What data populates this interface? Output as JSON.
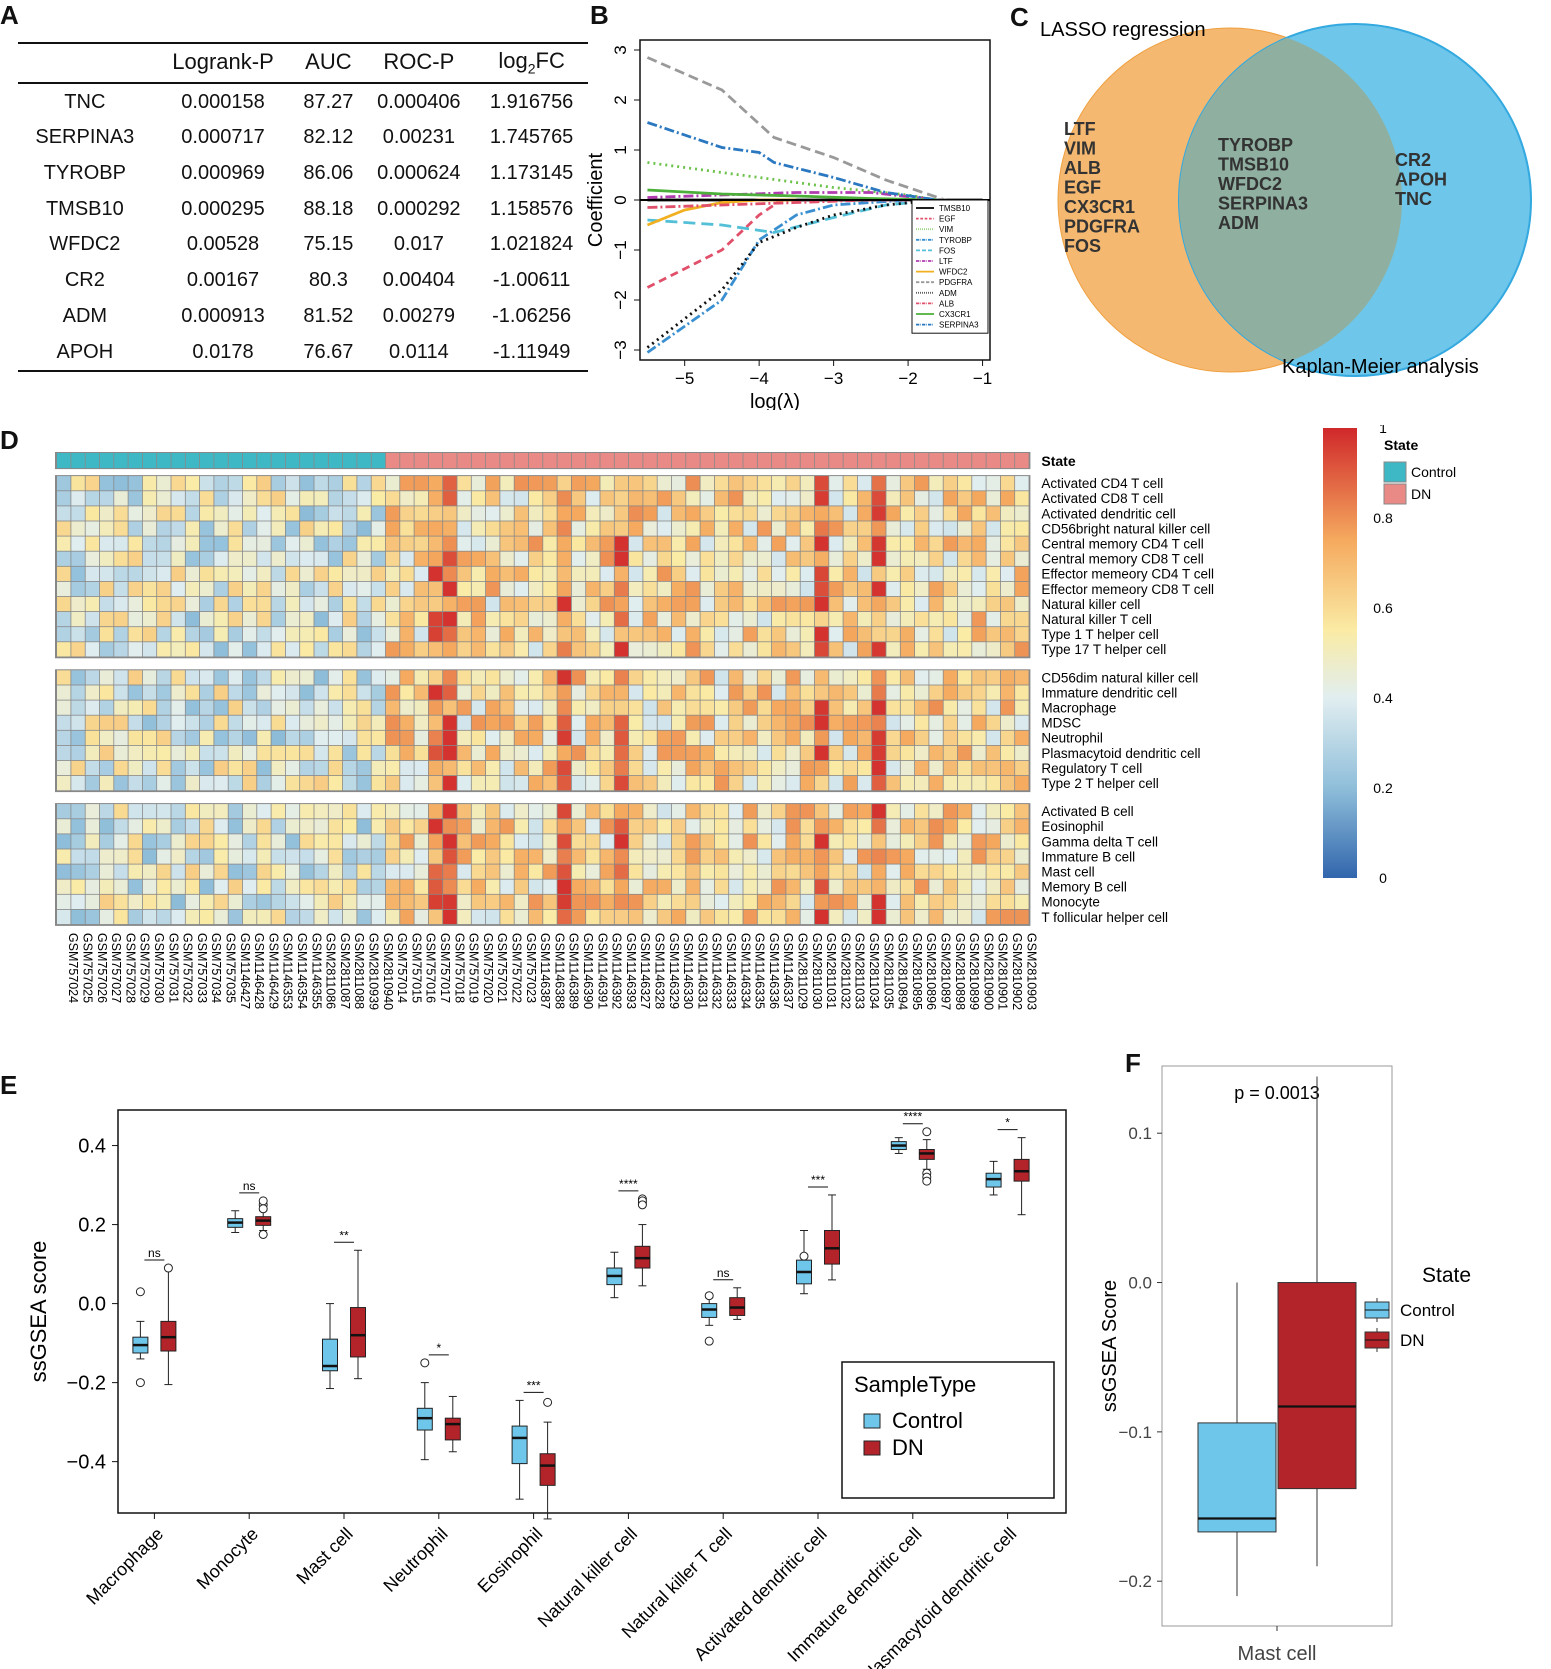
{
  "panels": {
    "a": "A",
    "b": "B",
    "c": "C",
    "d": "D",
    "e": "E",
    "f": "F"
  },
  "table": {
    "headers": [
      "",
      "Logrank-P",
      "AUC",
      "ROC-P",
      "log2FC"
    ],
    "rows": [
      [
        "TNC",
        "0.000158",
        "87.27",
        "0.000406",
        "1.916756"
      ],
      [
        "SERPINA3",
        "0.000717",
        "82.12",
        "0.00231",
        "1.745765"
      ],
      [
        "TYROBP",
        "0.000969",
        "86.06",
        "0.000624",
        "1.173145"
      ],
      [
        "TMSB10",
        "0.000295",
        "88.18",
        "0.000292",
        "1.158576"
      ],
      [
        "WFDC2",
        "0.00528",
        "75.15",
        "0.017",
        "1.021824"
      ],
      [
        "CR2",
        "0.00167",
        "80.3",
        "0.00404",
        "-1.00611"
      ],
      [
        "ADM",
        "0.000913",
        "81.52",
        "0.00279",
        "-1.06256"
      ],
      [
        "APOH",
        "0.0178",
        "76.67",
        "0.0114",
        "-1.11949"
      ]
    ]
  },
  "venn": {
    "left_title": "LASSO regression",
    "right_title": "Kaplan-Meier analysis",
    "left_only": [
      "LTF",
      "VIM",
      "ALB",
      "EGF",
      "CX3CR1",
      "PDGFRA",
      "FOS"
    ],
    "both": [
      "TYROBP",
      "TMSB10",
      "WFDC2",
      "SERPINA3",
      "ADM"
    ],
    "right_only": [
      "CR2",
      "APOH",
      "TNC"
    ],
    "colors": {
      "left": "#f4b870",
      "right": "#6ec6ea",
      "overlap": "#8fb0a0"
    }
  },
  "chart_data": [
    {
      "id": "lasso",
      "type": "line",
      "xlabel": "log(λ)",
      "ylabel": "Coefficient",
      "xlim": [
        -5.6,
        -0.9
      ],
      "ylim": [
        -3.2,
        3.2
      ],
      "xticks": [
        -5,
        -4,
        -3,
        -2,
        -1
      ],
      "yticks": [
        -3,
        -2,
        -1,
        0,
        1,
        2,
        3
      ],
      "series": [
        {
          "name": "TMSB10",
          "color": "#000000",
          "dash": "",
          "x": [
            -5.5,
            -4,
            -3,
            -2,
            -1
          ],
          "y": [
            0,
            0,
            0,
            0,
            0
          ]
        },
        {
          "name": "EGF",
          "color": "#e0506a",
          "dash": "8,5",
          "x": [
            -5.5,
            -4.5,
            -4,
            -3.7
          ],
          "y": [
            -1.75,
            -1,
            -0.3,
            0
          ]
        },
        {
          "name": "VIM",
          "color": "#6cc24a",
          "dash": "2,4",
          "x": [
            -5.5,
            -4,
            -3,
            -2,
            -1.6
          ],
          "y": [
            0.75,
            0.45,
            0.25,
            0.1,
            0
          ]
        },
        {
          "name": "TYROBP",
          "color": "#3a8fd0",
          "dash": "10,3,2,3",
          "x": [
            -5.5,
            -4.5,
            -4,
            -3.5,
            -3,
            -2,
            -1.6
          ],
          "y": [
            -3.05,
            -2,
            -0.8,
            -0.3,
            -0.1,
            0,
            0
          ]
        },
        {
          "name": "FOS",
          "color": "#53c0d8",
          "dash": "12,6",
          "x": [
            -5.5,
            -4.5,
            -3.8,
            -3,
            -2.3,
            -1.6
          ],
          "y": [
            -0.4,
            -0.5,
            -0.65,
            -0.35,
            -0.1,
            0
          ]
        },
        {
          "name": "LTF",
          "color": "#b03cb0",
          "dash": "10,3,2,3",
          "x": [
            -5.5,
            -4.5,
            -3.5,
            -2.5,
            -1.6
          ],
          "y": [
            0.05,
            0.1,
            0.15,
            0.15,
            0
          ]
        },
        {
          "name": "WFDC2",
          "color": "#f0b020",
          "dash": "",
          "x": [
            -5.5,
            -5,
            -4.5,
            -4,
            -3.5
          ],
          "y": [
            -0.5,
            -0.2,
            -0.05,
            0,
            0
          ]
        },
        {
          "name": "PDGFRA",
          "color": "#999999",
          "dash": "10,5",
          "x": [
            -5.5,
            -4.5,
            -3.8,
            -3,
            -2.3,
            -1.8,
            -1.5
          ],
          "y": [
            2.85,
            2.2,
            1.25,
            0.85,
            0.4,
            0.15,
            0
          ]
        },
        {
          "name": "ADM",
          "color": "#111111",
          "dash": "2,4",
          "x": [
            -5.5,
            -4.5,
            -4,
            -3.5,
            -3,
            -2.3,
            -1.6
          ],
          "y": [
            -2.95,
            -1.8,
            -0.85,
            -0.55,
            -0.3,
            -0.1,
            0
          ]
        },
        {
          "name": "ALB",
          "color": "#e0506a",
          "dash": "10,3,2,3",
          "x": [
            -5.5,
            -4.5,
            -3.5,
            -2.5,
            -1.6
          ],
          "y": [
            -0.15,
            -0.1,
            -0.05,
            0,
            0
          ]
        },
        {
          "name": "CX3CR1",
          "color": "#4caf3a",
          "dash": "",
          "x": [
            -5.5,
            -4.5,
            -3.5,
            -2.5,
            -1.6
          ],
          "y": [
            0.2,
            0.12,
            0.08,
            0.03,
            0
          ]
        },
        {
          "name": "SERPINA3",
          "color": "#2a78c0",
          "dash": "10,3,2,3",
          "x": [
            -5.5,
            -4.5,
            -4,
            -3.8,
            -3,
            -2.3,
            -1.6
          ],
          "y": [
            1.55,
            1.05,
            0.95,
            0.75,
            0.45,
            0.15,
            0
          ]
        }
      ]
    },
    {
      "id": "heatmap",
      "type": "heatmap",
      "state_label": "State",
      "legend_title": "State",
      "legend": [
        {
          "name": "Control",
          "color": "#3fb8c6"
        },
        {
          "name": "DN",
          "color": "#ea8a86"
        }
      ],
      "colorbar": {
        "ticks": [
          "0",
          "0.2",
          "0.4",
          "0.6",
          "0.8",
          "1"
        ],
        "min": 0,
        "max": 1
      },
      "n_control": 23,
      "samples": [
        "GSM757024",
        "GSM757025",
        "GSM757026",
        "GSM757027",
        "GSM757028",
        "GSM757029",
        "GSM757030",
        "GSM757031",
        "GSM757032",
        "GSM757033",
        "GSM757034",
        "GSM757035",
        "GSM1146427",
        "GSM1146428",
        "GSM1146429",
        "GSM1146353",
        "GSM1146354",
        "GSM1146355",
        "GSM2811086",
        "GSM2811087",
        "GSM2811088",
        "GSM2810939",
        "GSM2810940",
        "GSM757014",
        "GSM757015",
        "GSM757016",
        "GSM757017",
        "GSM757018",
        "GSM757019",
        "GSM757020",
        "GSM757021",
        "GSM757022",
        "GSM757023",
        "GSM1146387",
        "GSM1146388",
        "GSM1146389",
        "GSM1146390",
        "GSM1146391",
        "GSM1146392",
        "GSM1146393",
        "GSM1146327",
        "GSM1146328",
        "GSM1146329",
        "GSM1146330",
        "GSM1146331",
        "GSM1146332",
        "GSM1146333",
        "GSM1146334",
        "GSM1146335",
        "GSM1146336",
        "GSM1146337",
        "GSM2811029",
        "GSM2811030",
        "GSM2811031",
        "GSM2811032",
        "GSM2811033",
        "GSM2811034",
        "GSM2811035",
        "GSM2810894",
        "GSM2810895",
        "GSM2810896",
        "GSM2810897",
        "GSM2810898",
        "GSM2810899",
        "GSM2810900",
        "GSM2810901",
        "GSM2810902",
        "GSM2810903"
      ],
      "groups": [
        [
          "Activated CD4 T cell",
          "Activated CD8 T cell",
          "Activated dendritic cell",
          "CD56bright natural killer cell",
          "Central memory CD4 T cell",
          "Central memory CD8 T cell",
          "Effector memeory CD4 T cell",
          "Effector memeory CD8 T cell",
          "Natural killer cell",
          "Natural killer T cell",
          "Type 1 T helper cell",
          "Type 17 T helper cell"
        ],
        [
          "CD56dim natural killer cell",
          "Immature dendritic cell",
          "Macrophage",
          "MDSC",
          "Neutrophil",
          "Plasmacytoid dendritic cell",
          "Regulatory T cell",
          "Type 2 T helper cell"
        ],
        [
          "Activated B cell",
          "Eosinophil",
          "Gamma delta T cell",
          "Immature  B cell",
          "Mast cell",
          "Memory B cell",
          "Monocyte",
          "T follicular helper cell"
        ]
      ]
    },
    {
      "id": "boxplot",
      "type": "box",
      "ylabel": "ssGSEA score",
      "ylim": [
        -0.53,
        0.49
      ],
      "yticks": [
        -0.4,
        -0.2,
        0.0,
        0.2,
        0.4
      ],
      "ytick_labels": [
        "−0.4",
        "−0.2",
        "0.0",
        "0.2",
        "0.4"
      ],
      "legend_title": "SampleType",
      "legend": [
        {
          "name": "Control",
          "color": "#6ec6ea"
        },
        {
          "name": "DN",
          "color": "#b3242a"
        }
      ],
      "categories": [
        "Macrophage",
        "Monocyte",
        "Mast cell",
        "Neutrophil",
        "Eosinophil",
        "Natural killer cell",
        "Natural killer T cell",
        "Activated dendritic cell",
        "Immature dendritic cell",
        "Plasmacytoid dendritic cell"
      ],
      "significance": [
        "ns",
        "ns",
        "**",
        "*",
        "***",
        "****",
        "ns",
        "***",
        "****",
        "*"
      ],
      "control": [
        {
          "min": -0.14,
          "q1": -0.125,
          "med": -0.105,
          "q3": -0.085,
          "max": -0.045,
          "out": [
            0.03,
            -0.2
          ]
        },
        {
          "min": 0.18,
          "q1": 0.193,
          "med": 0.205,
          "q3": 0.215,
          "max": 0.235,
          "out": []
        },
        {
          "min": -0.215,
          "q1": -0.17,
          "med": -0.158,
          "q3": -0.09,
          "max": 0.0,
          "out": []
        },
        {
          "min": -0.395,
          "q1": -0.32,
          "med": -0.29,
          "q3": -0.265,
          "max": -0.2,
          "out": [
            -0.15
          ]
        },
        {
          "min": -0.495,
          "q1": -0.405,
          "med": -0.34,
          "q3": -0.31,
          "max": -0.245,
          "out": []
        },
        {
          "min": 0.015,
          "q1": 0.048,
          "med": 0.07,
          "q3": 0.09,
          "max": 0.13,
          "out": []
        },
        {
          "min": -0.055,
          "q1": -0.035,
          "med": -0.015,
          "q3": 0.0,
          "max": 0.015,
          "out": [
            0.02,
            -0.095
          ]
        },
        {
          "min": 0.025,
          "q1": 0.05,
          "med": 0.08,
          "q3": 0.11,
          "max": 0.185,
          "out": [
            0.12
          ]
        },
        {
          "min": 0.38,
          "q1": 0.39,
          "med": 0.4,
          "q3": 0.41,
          "max": 0.42,
          "out": []
        },
        {
          "min": 0.275,
          "q1": 0.295,
          "med": 0.315,
          "q3": 0.33,
          "max": 0.36,
          "out": []
        }
      ],
      "dn": [
        {
          "min": -0.205,
          "q1": -0.12,
          "med": -0.085,
          "q3": -0.045,
          "max": 0.09,
          "out": [
            0.09
          ]
        },
        {
          "min": 0.185,
          "q1": 0.198,
          "med": 0.21,
          "q3": 0.22,
          "max": 0.235,
          "out": [
            0.25,
            0.26,
            0.24,
            0.175
          ]
        },
        {
          "min": -0.19,
          "q1": -0.135,
          "med": -0.08,
          "q3": -0.01,
          "max": 0.135,
          "out": []
        },
        {
          "min": -0.375,
          "q1": -0.345,
          "med": -0.305,
          "q3": -0.29,
          "max": -0.235,
          "out": []
        },
        {
          "min": -0.545,
          "q1": -0.46,
          "med": -0.41,
          "q3": -0.38,
          "max": -0.3,
          "out": [
            -0.25
          ]
        },
        {
          "min": 0.045,
          "q1": 0.09,
          "med": 0.115,
          "q3": 0.145,
          "max": 0.2,
          "out": [
            0.255,
            0.265,
            0.26,
            0.25
          ]
        },
        {
          "min": -0.04,
          "q1": -0.03,
          "med": -0.01,
          "q3": 0.015,
          "max": 0.04,
          "out": []
        },
        {
          "min": 0.06,
          "q1": 0.1,
          "med": 0.14,
          "q3": 0.185,
          "max": 0.275,
          "out": []
        },
        {
          "min": 0.34,
          "q1": 0.365,
          "med": 0.38,
          "q3": 0.39,
          "max": 0.415,
          "out": [
            0.435,
            0.33,
            0.32,
            0.31
          ]
        },
        {
          "min": 0.225,
          "q1": 0.31,
          "med": 0.335,
          "q3": 0.365,
          "max": 0.42,
          "out": []
        }
      ]
    },
    {
      "id": "mast",
      "type": "box",
      "pvalue": "p = 0.0013",
      "ylabel": "ssGSEA Score",
      "xlabel": "Mast cell",
      "ylim": [
        -0.23,
        0.145
      ],
      "yticks": [
        -0.2,
        -0.1,
        0.0,
        0.1
      ],
      "ytick_labels": [
        "−0.2",
        "−0.1",
        "0.0",
        "0.1"
      ],
      "legend_title": "State",
      "legend": [
        {
          "name": "Control",
          "color": "#6ec6ea"
        },
        {
          "name": "DN",
          "color": "#b3242a"
        }
      ],
      "control": {
        "min": -0.21,
        "q1": -0.167,
        "med": -0.158,
        "q3": -0.094,
        "max": 0.0
      },
      "dn": {
        "min": -0.19,
        "q1": -0.138,
        "med": -0.083,
        "q3": 0.0,
        "max": 0.138
      }
    }
  ]
}
